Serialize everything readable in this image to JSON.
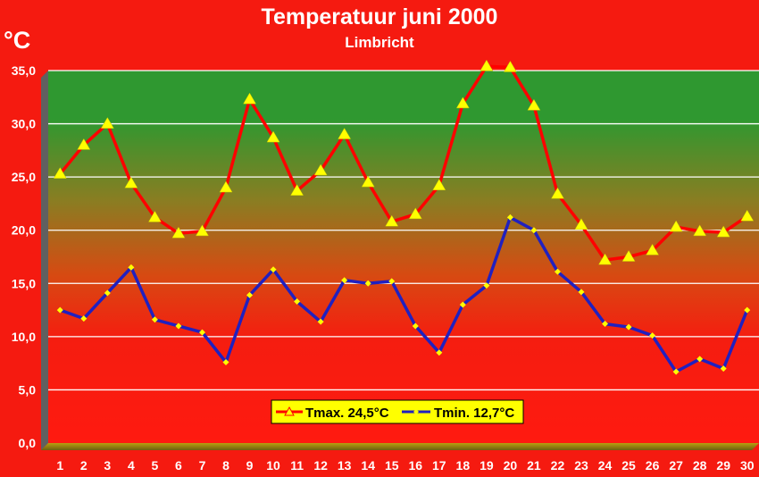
{
  "chart_data": {
    "type": "line",
    "title": "Temperatuur juni 2000",
    "subtitle": "Limbricht",
    "unit_label": "°C",
    "xlabel": "",
    "ylabel": "",
    "ylim": [
      0,
      35
    ],
    "yticks": [
      "0,0",
      "5,0",
      "10,0",
      "15,0",
      "20,0",
      "25,0",
      "30,0",
      "35,0"
    ],
    "ytick_values": [
      0,
      5,
      10,
      15,
      20,
      25,
      30,
      35
    ],
    "categories": [
      "1",
      "2",
      "3",
      "4",
      "5",
      "6",
      "7",
      "8",
      "9",
      "10",
      "11",
      "12",
      "13",
      "14",
      "15",
      "16",
      "17",
      "18",
      "19",
      "20",
      "21",
      "22",
      "23",
      "24",
      "25",
      "26",
      "27",
      "28",
      "29",
      "30"
    ],
    "grid": true,
    "legend_position": "bottom-center",
    "series": [
      {
        "name": "Tmax. 24,5°C",
        "color": "#ff0000",
        "marker": "triangle",
        "marker_color": "#ffff00",
        "values": [
          25.3,
          28.0,
          30.0,
          24.4,
          21.2,
          19.7,
          19.9,
          24.0,
          32.3,
          28.7,
          23.7,
          25.6,
          29.0,
          24.5,
          20.8,
          21.5,
          24.2,
          31.9,
          35.4,
          35.3,
          31.7,
          23.4,
          20.5,
          17.2,
          17.5,
          18.1,
          20.3,
          19.9,
          19.8,
          21.3
        ]
      },
      {
        "name": "Tmin. 12,7°C",
        "color": "#2020c0",
        "marker": "diamond",
        "marker_color": "#ffff00",
        "values": [
          12.5,
          11.7,
          14.1,
          16.5,
          11.6,
          11.0,
          10.4,
          7.6,
          13.9,
          16.3,
          13.3,
          11.4,
          15.3,
          15.0,
          15.2,
          11.0,
          8.5,
          13.0,
          14.8,
          21.2,
          20.0,
          16.1,
          14.2,
          11.2,
          10.9,
          10.1,
          6.7,
          7.9,
          7.0,
          12.5
        ]
      }
    ]
  }
}
